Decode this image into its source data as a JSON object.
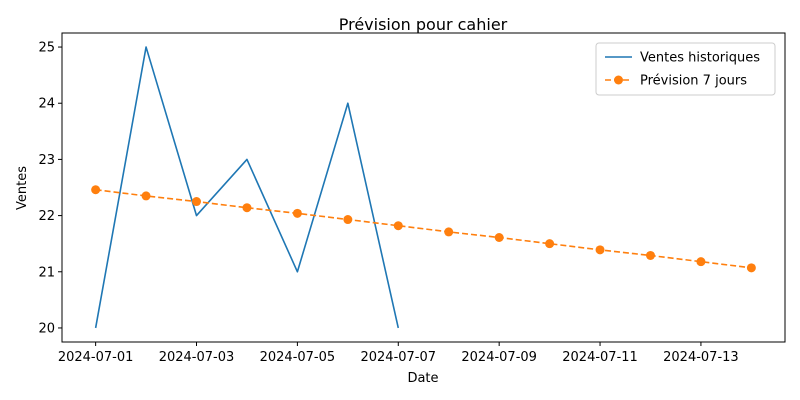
{
  "chart_data": {
    "type": "line",
    "title": "Prévision pour cahier",
    "xlabel": "Date",
    "ylabel": "Ventes",
    "x_ticks": [
      "2024-07-01",
      "2024-07-03",
      "2024-07-05",
      "2024-07-07",
      "2024-07-09",
      "2024-07-11",
      "2024-07-13"
    ],
    "y_ticks": [
      20,
      21,
      22,
      23,
      24,
      25
    ],
    "xlim": [
      "2024-06-30T08:00",
      "2024-07-14T16:00"
    ],
    "ylim": [
      19.75,
      25.25
    ],
    "grid": false,
    "legend_position": "top-right",
    "series": [
      {
        "name": "Ventes historiques",
        "color": "#1f77b4",
        "style": "solid",
        "marker": "none",
        "x": [
          "2024-07-01",
          "2024-07-02",
          "2024-07-03",
          "2024-07-04",
          "2024-07-05",
          "2024-07-06",
          "2024-07-07"
        ],
        "y": [
          20,
          25,
          22,
          23,
          21,
          24,
          20
        ]
      },
      {
        "name": "Prévision 7 jours",
        "color": "#ff7f0e",
        "style": "dashed",
        "marker": "circle",
        "x": [
          "2024-07-01",
          "2024-07-02",
          "2024-07-03",
          "2024-07-04",
          "2024-07-05",
          "2024-07-06",
          "2024-07-07",
          "2024-07-08",
          "2024-07-09",
          "2024-07-10",
          "2024-07-11",
          "2024-07-12",
          "2024-07-13",
          "2024-07-14"
        ],
        "y": [
          22.46,
          22.35,
          22.25,
          22.14,
          22.04,
          21.93,
          21.82,
          21.71,
          21.61,
          21.5,
          21.39,
          21.29,
          21.18,
          21.07
        ]
      }
    ]
  }
}
